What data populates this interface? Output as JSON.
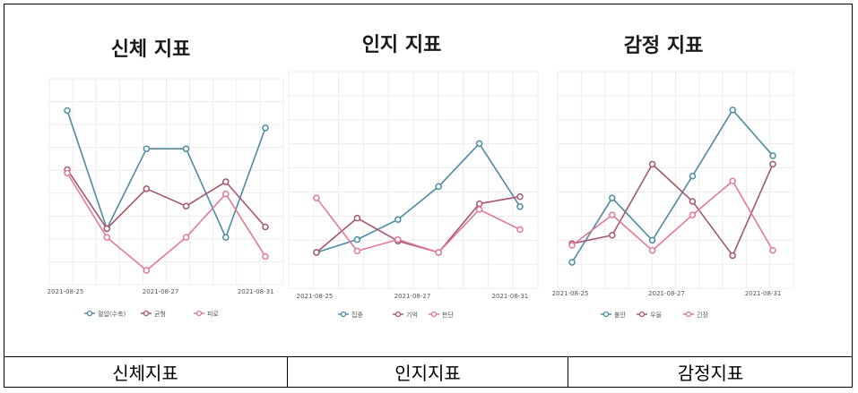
{
  "chart_data": [
    {
      "type": "line",
      "title": "신체 지표",
      "xticks": [
        "2021-08-25",
        "2021-08-27",
        "2021-08-31"
      ],
      "ylim": [
        0,
        10
      ],
      "series": [
        {
          "name": "혈압(수축)",
          "color": "#4d8ca0",
          "values": [
            9.2,
            2.4,
            7.0,
            7.0,
            1.9,
            8.2
          ]
        },
        {
          "name": "균형",
          "color": "#a5566f",
          "values": [
            5.8,
            2.4,
            4.7,
            3.7,
            5.1,
            2.5
          ]
        },
        {
          "name": "피로",
          "color": "#e07a96",
          "values": [
            5.6,
            1.9,
            0.0,
            1.9,
            4.4,
            0.8
          ]
        }
      ]
    },
    {
      "type": "line",
      "title": "인지 지표",
      "xticks": [
        "2021-08-25",
        "2021-08-27",
        "2021-08-31"
      ],
      "ylim": [
        0,
        10
      ],
      "series": [
        {
          "name": "집중",
          "color": "#4d8ca0",
          "values": [
            0.0,
            0.9,
            2.3,
            4.6,
            7.6,
            3.2
          ]
        },
        {
          "name": "기억",
          "color": "#a5566f",
          "values": [
            0.0,
            2.4,
            0.8,
            0.0,
            3.4,
            3.9
          ]
        },
        {
          "name": "판단",
          "color": "#e07a96",
          "values": [
            3.8,
            0.1,
            0.9,
            0.0,
            3.0,
            1.6
          ]
        }
      ]
    },
    {
      "type": "line",
      "title": "감정 지표",
      "xticks": [
        "2021-08-25",
        "2021-08-27",
        "2021-08-31"
      ],
      "ylim": [
        0,
        10
      ],
      "series": [
        {
          "name": "불안",
          "color": "#4d8ca0",
          "values": [
            0.0,
            3.8,
            1.3,
            5.1,
            9.0,
            6.3
          ]
        },
        {
          "name": "우울",
          "color": "#a5566f",
          "values": [
            1.1,
            1.6,
            5.8,
            3.6,
            0.4,
            5.8
          ]
        },
        {
          "name": "긴장",
          "color": "#e07a96",
          "values": [
            1.0,
            2.8,
            0.7,
            2.8,
            4.8,
            0.7
          ]
        }
      ]
    }
  ],
  "footer": [
    "신체지표",
    "인지지표",
    "감정지표"
  ]
}
